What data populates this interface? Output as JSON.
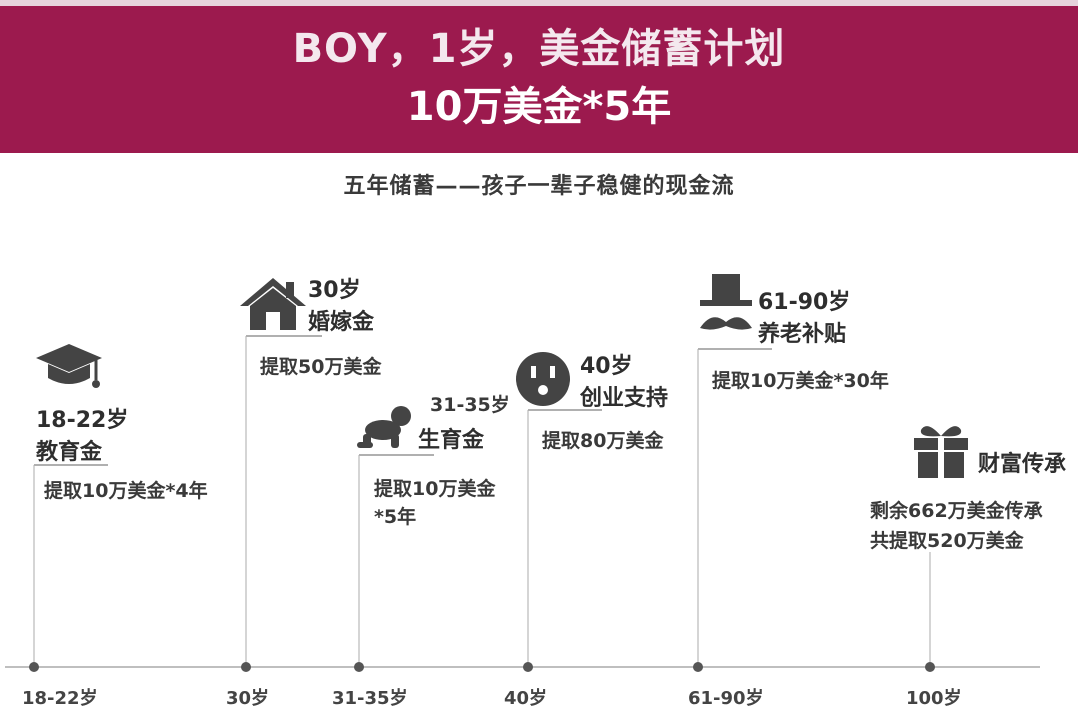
{
  "header": {
    "title": "BOY，1岁，美金储蓄计划",
    "subtitle": "10万美金*5年"
  },
  "tagline": "五年储蓄——孩子一辈子稳健的现金流",
  "colors": {
    "header_bg": "#9c1a4e",
    "line": "#d5d5d5",
    "dot": "#555555",
    "text": "#2e2e2e"
  },
  "milestones": [
    {
      "age": "18-22岁",
      "name": "教育金",
      "amount": "提取10万美金*4年",
      "icon": "graduation-cap-icon"
    },
    {
      "age": "30岁",
      "name": "婚嫁金",
      "amount": "提取50万美金",
      "icon": "house-icon"
    },
    {
      "age": "31-35岁",
      "name": "生育金",
      "amount_line1": "提取10万美金",
      "amount_line2": "*5年",
      "icon": "crawling-baby-icon"
    },
    {
      "age": "40岁",
      "name": "创业支持",
      "amount": "提取80万美金",
      "icon": "power-plug-icon"
    },
    {
      "age": "61-90岁",
      "name": "养老补贴",
      "amount": "提取10万美金*30年",
      "icon": "top-hat-mustache-icon"
    },
    {
      "name": "财富传承",
      "amount_line1": "剩余662万美金传承",
      "amount_line2": "共提取520万美金",
      "icon": "gift-box-icon"
    }
  ],
  "axis": {
    "labels": [
      "18-22岁",
      "30岁",
      "31-35岁",
      "40岁",
      "61-90岁",
      "100岁"
    ]
  }
}
